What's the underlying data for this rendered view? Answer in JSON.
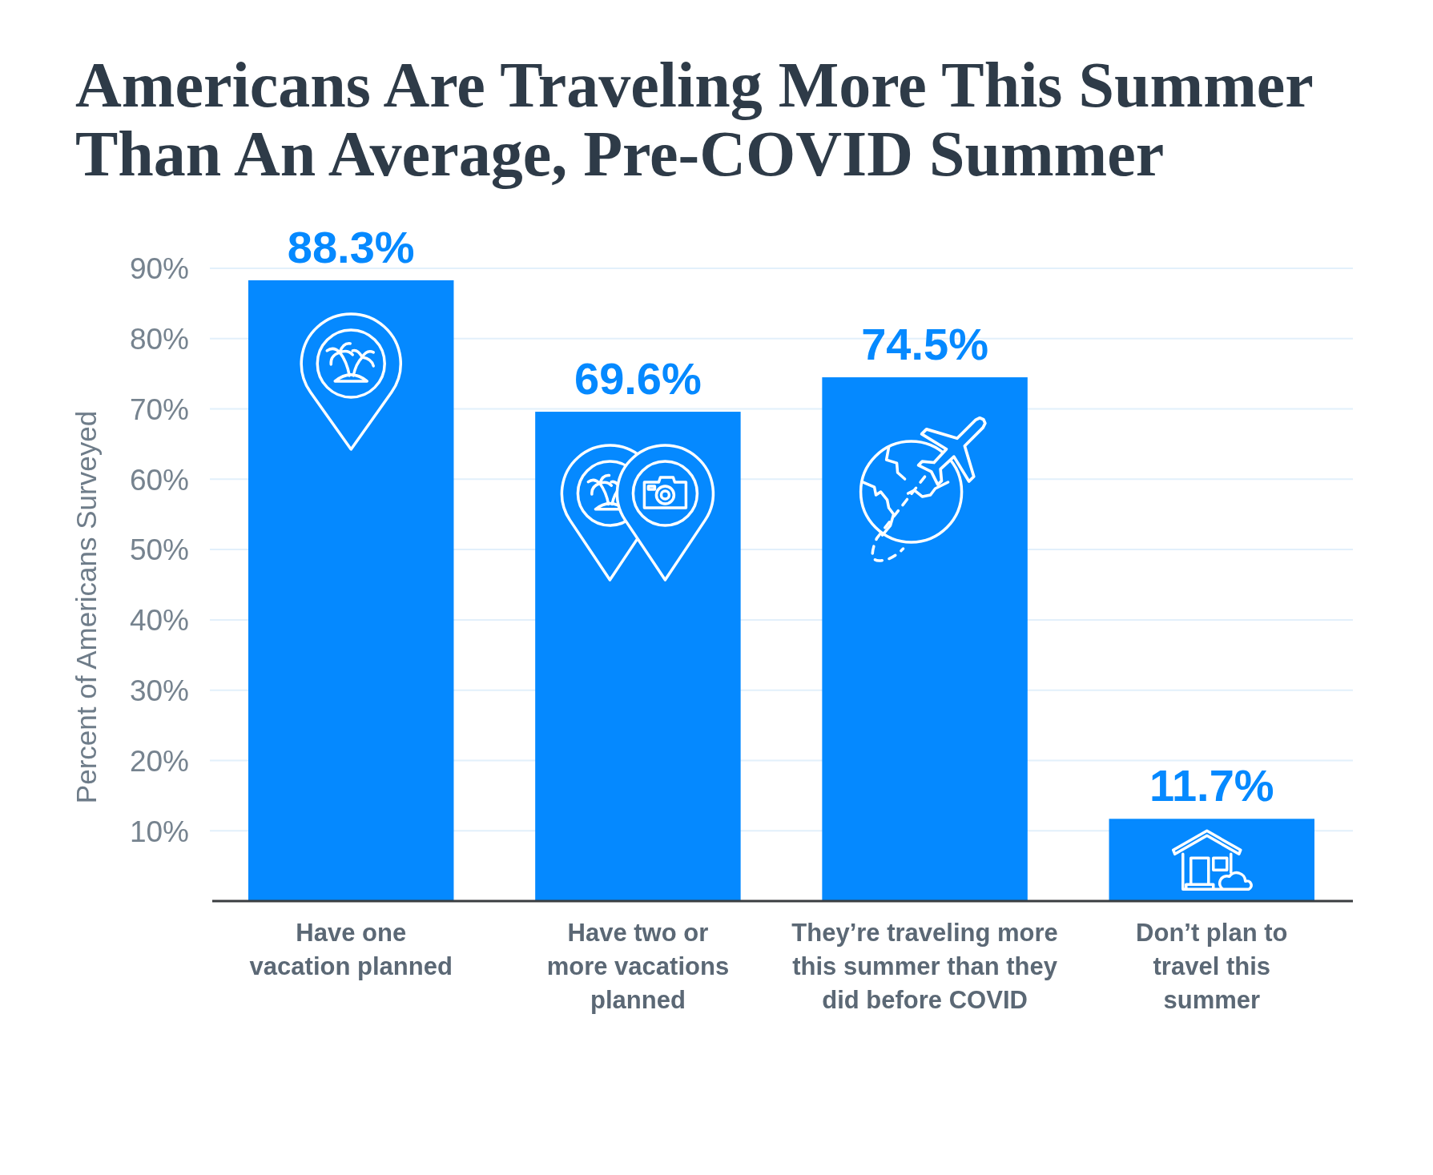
{
  "chart_data": {
    "type": "bar",
    "title": "Americans Are Traveling More This Summer Than An Average, Pre-COVID Summer",
    "ylabel": "Percent of Americans Surveyed",
    "categories": [
      "Have one\nvacation planned",
      "Have two or\nmore vacations\nplanned",
      "They’re traveling more\nthis summer than they\ndid before COVID",
      "Don’t plan to\ntravel this\nsummer"
    ],
    "values": [
      88.3,
      69.6,
      74.5,
      11.7
    ],
    "value_labels": [
      "88.3%",
      "69.6%",
      "74.5%",
      "11.7%"
    ],
    "color": "#0589ff",
    "ylim": [
      0,
      90
    ],
    "yticks": [
      {
        "value": 10,
        "label": "10%"
      },
      {
        "value": 20,
        "label": "20%"
      },
      {
        "value": 30,
        "label": "30%"
      },
      {
        "value": 40,
        "label": "40%"
      },
      {
        "value": 50,
        "label": "50%"
      },
      {
        "value": 60,
        "label": "60%"
      },
      {
        "value": 70,
        "label": "70%"
      },
      {
        "value": 80,
        "label": "80%"
      },
      {
        "value": 90,
        "label": "90%"
      }
    ],
    "grid": "y"
  }
}
